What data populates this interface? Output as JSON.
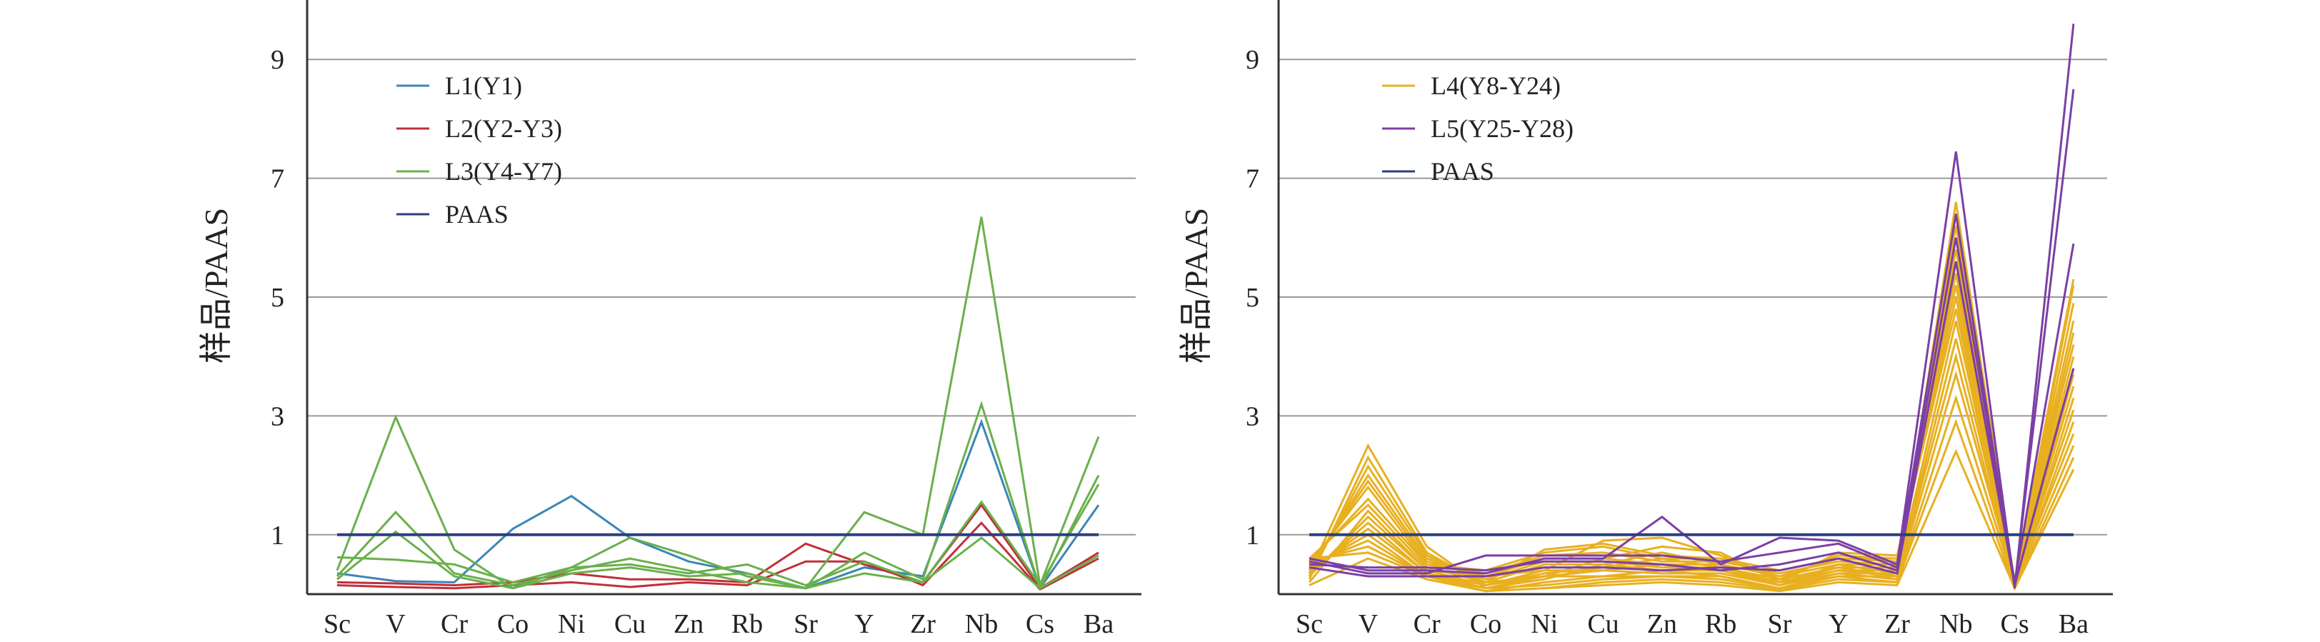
{
  "colors": {
    "L1": "#3a86b8",
    "L2": "#c0303a",
    "L3": "#6ab04c",
    "L4": "#e8b020",
    "L5": "#7b3fa5",
    "PAAS": "#2c3e80",
    "grid": "#999999",
    "axis": "#333333"
  },
  "chart_data": [
    {
      "type": "line",
      "categories": [
        "Sc",
        "V",
        "Cr",
        "Co",
        "Ni",
        "Cu",
        "Zn",
        "Rb",
        "Sr",
        "Y",
        "Zr",
        "Nb",
        "Cs",
        "Ba"
      ],
      "ylabel": "样品/PAAS",
      "ylim": [
        0,
        10
      ],
      "yticks": [
        1,
        3,
        5,
        7,
        9
      ],
      "grid": true,
      "legend_position": "top-left",
      "legend": [
        {
          "label": "L1(Y1)",
          "key": "L1"
        },
        {
          "label": "L2(Y2-Y3)",
          "key": "L2"
        },
        {
          "label": "L3(Y4-Y7)",
          "key": "L3"
        },
        {
          "label": "PAAS",
          "key": "PAAS"
        }
      ],
      "series": [
        {
          "group": "L1",
          "values": [
            0.35,
            0.22,
            0.2,
            1.1,
            1.65,
            0.95,
            0.55,
            0.35,
            0.1,
            0.45,
            0.3,
            2.9,
            0.1,
            1.5
          ]
        },
        {
          "group": "L2",
          "values": [
            0.2,
            0.18,
            0.15,
            0.2,
            0.35,
            0.25,
            0.25,
            0.2,
            0.85,
            0.5,
            0.2,
            1.5,
            0.1,
            0.7
          ]
        },
        {
          "group": "L2",
          "values": [
            0.15,
            0.12,
            0.1,
            0.15,
            0.2,
            0.12,
            0.2,
            0.15,
            0.55,
            0.55,
            0.15,
            1.2,
            0.08,
            0.6
          ]
        },
        {
          "group": "L3",
          "values": [
            0.4,
            2.98,
            0.75,
            0.1,
            0.45,
            0.95,
            0.65,
            0.3,
            0.1,
            1.38,
            1.0,
            6.35,
            0.15,
            2.65
          ]
        },
        {
          "group": "L3",
          "values": [
            0.3,
            1.38,
            0.35,
            0.15,
            0.4,
            0.6,
            0.4,
            0.2,
            0.1,
            0.7,
            0.25,
            3.2,
            0.1,
            2.0
          ]
        },
        {
          "group": "L3",
          "values": [
            0.62,
            0.58,
            0.5,
            0.2,
            0.45,
            0.5,
            0.35,
            0.5,
            0.15,
            0.55,
            0.2,
            1.55,
            0.15,
            1.85
          ]
        },
        {
          "group": "L3",
          "values": [
            0.25,
            1.05,
            0.3,
            0.1,
            0.35,
            0.45,
            0.3,
            0.35,
            0.1,
            0.35,
            0.2,
            0.95,
            0.1,
            0.65
          ]
        },
        {
          "group": "PAAS",
          "values": [
            1,
            1,
            1,
            1,
            1,
            1,
            1,
            1,
            1,
            1,
            1,
            1,
            1,
            1
          ]
        }
      ]
    },
    {
      "type": "line",
      "categories": [
        "Sc",
        "V",
        "Cr",
        "Co",
        "Ni",
        "Cu",
        "Zn",
        "Rb",
        "Sr",
        "Y",
        "Zr",
        "Nb",
        "Cs",
        "Ba"
      ],
      "ylabel": "样品/PAAS",
      "ylim": [
        0,
        10
      ],
      "yticks": [
        1,
        3,
        5,
        7,
        9
      ],
      "grid": true,
      "legend_position": "top-left",
      "legend": [
        {
          "label": "L4(Y8-Y24)",
          "key": "L4"
        },
        {
          "label": "L5(Y25-Y28)",
          "key": "L5"
        },
        {
          "label": "PAAS",
          "key": "PAAS"
        }
      ],
      "series": [
        {
          "group": "L4",
          "values": [
            0.35,
            2.5,
            0.8,
            0.1,
            0.3,
            0.3,
            0.3,
            0.3,
            0.1,
            0.3,
            0.3,
            6.6,
            0.2,
            5.3
          ]
        },
        {
          "group": "L4",
          "values": [
            0.25,
            2.3,
            0.7,
            0.15,
            0.4,
            0.4,
            0.35,
            0.35,
            0.15,
            0.35,
            0.35,
            6.4,
            0.15,
            5.2
          ]
        },
        {
          "group": "L4",
          "values": [
            0.3,
            2.15,
            0.65,
            0.2,
            0.5,
            0.5,
            0.4,
            0.4,
            0.2,
            0.4,
            0.4,
            6.2,
            0.15,
            4.9
          ]
        },
        {
          "group": "L4",
          "values": [
            0.4,
            2.0,
            0.6,
            0.25,
            0.55,
            0.55,
            0.45,
            0.45,
            0.25,
            0.45,
            0.45,
            6.0,
            0.2,
            4.6
          ]
        },
        {
          "group": "L4",
          "values": [
            0.45,
            1.9,
            0.55,
            0.3,
            0.6,
            0.6,
            0.5,
            0.5,
            0.3,
            0.5,
            0.5,
            5.8,
            0.15,
            4.4
          ]
        },
        {
          "group": "L4",
          "values": [
            0.5,
            1.8,
            0.5,
            0.35,
            0.65,
            0.7,
            0.55,
            0.55,
            0.35,
            0.55,
            0.5,
            5.6,
            0.2,
            4.2
          ]
        },
        {
          "group": "L4",
          "values": [
            0.55,
            1.6,
            0.5,
            0.4,
            0.7,
            0.8,
            0.6,
            0.6,
            0.4,
            0.6,
            0.55,
            5.4,
            0.15,
            4.0
          ]
        },
        {
          "group": "L4",
          "values": [
            0.6,
            1.5,
            0.45,
            0.2,
            0.75,
            0.85,
            0.65,
            0.6,
            0.3,
            0.6,
            0.6,
            5.2,
            0.2,
            3.8
          ]
        },
        {
          "group": "L4",
          "values": [
            0.2,
            1.4,
            0.4,
            0.3,
            0.4,
            0.9,
            0.95,
            0.65,
            0.25,
            0.65,
            0.6,
            5.0,
            0.15,
            3.7
          ]
        },
        {
          "group": "L4",
          "values": [
            0.3,
            1.3,
            0.4,
            0.15,
            0.3,
            0.6,
            0.8,
            0.7,
            0.2,
            0.7,
            0.65,
            4.8,
            0.2,
            3.5
          ]
        },
        {
          "group": "L4",
          "values": [
            0.35,
            1.2,
            0.35,
            0.1,
            0.25,
            0.5,
            0.7,
            0.5,
            0.15,
            0.5,
            0.35,
            4.6,
            0.15,
            3.3
          ]
        },
        {
          "group": "L4",
          "values": [
            0.4,
            1.1,
            0.35,
            0.15,
            0.35,
            0.45,
            0.6,
            0.45,
            0.2,
            0.45,
            0.3,
            4.3,
            0.2,
            3.1
          ]
        },
        {
          "group": "L4",
          "values": [
            0.45,
            1.0,
            0.3,
            0.2,
            0.3,
            0.4,
            0.5,
            0.4,
            0.15,
            0.4,
            0.3,
            4.0,
            0.15,
            2.9
          ]
        },
        {
          "group": "L4",
          "values": [
            0.5,
            0.9,
            0.3,
            0.05,
            0.2,
            0.3,
            0.4,
            0.3,
            0.1,
            0.35,
            0.25,
            3.7,
            0.2,
            2.7
          ]
        },
        {
          "group": "L4",
          "values": [
            0.55,
            0.8,
            0.3,
            0.1,
            0.15,
            0.25,
            0.3,
            0.25,
            0.1,
            0.3,
            0.2,
            3.3,
            0.15,
            2.5
          ]
        },
        {
          "group": "L4",
          "values": [
            0.6,
            0.7,
            0.3,
            0.05,
            0.1,
            0.2,
            0.25,
            0.2,
            0.08,
            0.25,
            0.2,
            2.9,
            0.1,
            2.3
          ]
        },
        {
          "group": "L4",
          "values": [
            0.15,
            0.6,
            0.25,
            0.05,
            0.1,
            0.15,
            0.2,
            0.15,
            0.05,
            0.2,
            0.15,
            2.4,
            0.1,
            2.1
          ]
        },
        {
          "group": "L5",
          "values": [
            0.6,
            0.4,
            0.4,
            0.35,
            0.6,
            0.6,
            1.3,
            0.5,
            0.95,
            0.9,
            0.5,
            7.45,
            0.1,
            9.6
          ]
        },
        {
          "group": "L5",
          "values": [
            0.55,
            0.35,
            0.35,
            0.65,
            0.65,
            0.65,
            0.65,
            0.55,
            0.7,
            0.85,
            0.45,
            6.4,
            0.15,
            8.5
          ]
        },
        {
          "group": "L5",
          "values": [
            0.5,
            0.45,
            0.45,
            0.4,
            0.55,
            0.55,
            0.5,
            0.4,
            0.5,
            0.7,
            0.4,
            6.0,
            0.2,
            5.9
          ]
        },
        {
          "group": "L5",
          "values": [
            0.45,
            0.3,
            0.3,
            0.3,
            0.45,
            0.45,
            0.4,
            0.45,
            0.4,
            0.6,
            0.35,
            5.6,
            0.15,
            3.8
          ]
        },
        {
          "group": "PAAS",
          "values": [
            1,
            1,
            1,
            1,
            1,
            1,
            1,
            1,
            1,
            1,
            1,
            1,
            1,
            1
          ]
        }
      ]
    }
  ]
}
